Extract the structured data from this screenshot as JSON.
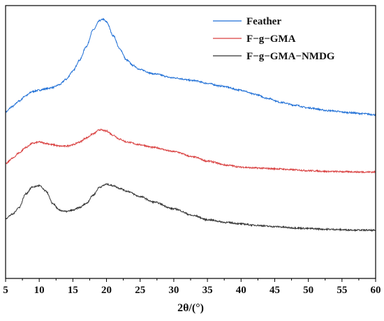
{
  "chart_data": {
    "type": "line",
    "title": "",
    "xlabel": "2θ/(°)",
    "ylabel": "",
    "xlim": [
      5,
      60
    ],
    "x_ticks": [
      5,
      10,
      15,
      20,
      25,
      30,
      35,
      40,
      45,
      50,
      55,
      60
    ],
    "x_tick_labels": [
      "5",
      "10",
      "15",
      "20",
      "25",
      "30",
      "35",
      "40",
      "45",
      "50",
      "55",
      "60"
    ],
    "y_ticks_shown": false,
    "y_range_arbitrary": [
      0,
      100
    ],
    "grid": false,
    "legend_position": "top-right",
    "series": [
      {
        "name": "Feather",
        "color": "#1f6fd6",
        "x": [
          5,
          6,
          7,
          8,
          9,
          10,
          11,
          12,
          13,
          14,
          15,
          16,
          17,
          18,
          19,
          19.5,
          20,
          21,
          22,
          23,
          24,
          25,
          27,
          30,
          33,
          35,
          37,
          40,
          42,
          44,
          46,
          48,
          50,
          53,
          56,
          58,
          60
        ],
        "y": [
          61,
          63,
          65,
          67,
          68.5,
          69,
          69.5,
          70,
          71,
          73,
          76,
          80,
          85,
          91,
          94.5,
          95,
          94,
          89,
          84,
          80,
          78,
          76.5,
          75,
          73.5,
          72.5,
          71.5,
          70.5,
          69,
          67.5,
          66,
          64.5,
          63.5,
          62.5,
          61.5,
          60.8,
          60.4,
          60
        ]
      },
      {
        "name": "F−g−GMA",
        "color": "#d94040",
        "x": [
          5,
          6,
          7,
          8,
          9,
          10,
          11,
          12,
          13,
          14,
          15,
          16,
          17,
          18,
          19,
          20,
          21,
          22,
          23,
          25,
          27,
          30,
          33,
          35,
          38,
          40,
          42,
          45,
          48,
          50,
          53,
          56,
          58,
          60
        ],
        "y": [
          42,
          44,
          46,
          48,
          49.5,
          50,
          49.5,
          49,
          48.5,
          48.5,
          49,
          50,
          51.5,
          53,
          54.5,
          54,
          52.5,
          51,
          50,
          49,
          48,
          46.5,
          44.5,
          43,
          41.5,
          40.8,
          40.5,
          40.2,
          39.8,
          39.5,
          39.2,
          39.1,
          39,
          39
        ]
      },
      {
        "name": "F−g−GMA−NMDG",
        "color": "#333333",
        "x": [
          5,
          6,
          7,
          8,
          9,
          10,
          11,
          12,
          13,
          14,
          15,
          16,
          17,
          18,
          19,
          20,
          21,
          22,
          23,
          25,
          27,
          30,
          33,
          35,
          38,
          40,
          42,
          45,
          48,
          50,
          53,
          56,
          58,
          60
        ],
        "y": [
          22,
          23.5,
          26,
          31,
          33.5,
          34,
          32,
          27.5,
          25,
          24.5,
          25,
          26,
          27.5,
          30.5,
          33.5,
          34.5,
          34,
          33,
          32,
          30,
          28,
          25.5,
          23,
          21.5,
          20.5,
          20,
          19.5,
          19,
          18.5,
          18.3,
          18,
          17.8,
          17.7,
          17.6
        ]
      }
    ]
  }
}
